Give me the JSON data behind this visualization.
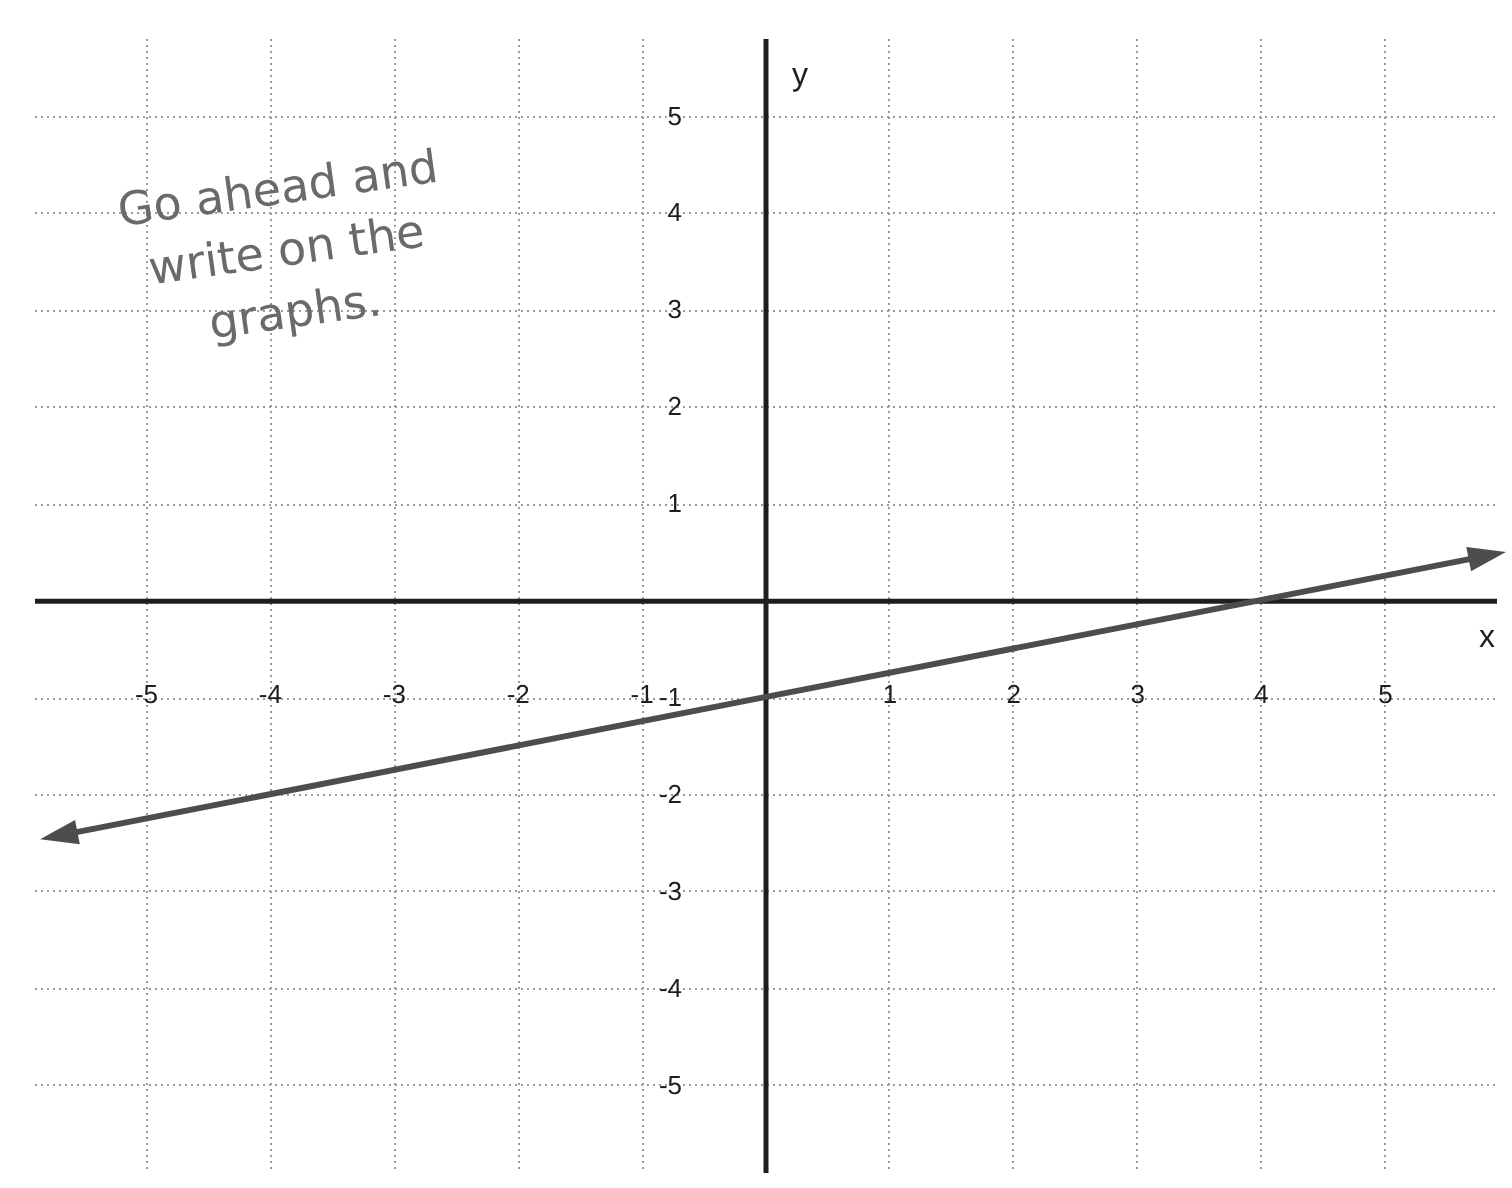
{
  "chart_data": {
    "type": "line",
    "xlabel": "x",
    "ylabel": "y",
    "annotations": [
      "Go ahead and\nwrite on the\ngraphs."
    ],
    "series": [
      {
        "color": "#4d4d4d",
        "x": [
          -5.7,
          0,
          4,
          5.83
        ],
        "values": [
          -2.43,
          -1,
          0,
          0.46
        ]
      }
    ],
    "xlim": [
      -5.9,
      5.9
    ],
    "ylim": [
      -5.9,
      5.8
    ],
    "xticks": [
      -5,
      -4,
      -3,
      -2,
      -1,
      1,
      2,
      3,
      4,
      5
    ],
    "yticks": [
      -5,
      -4,
      -3,
      -2,
      -1,
      1,
      2,
      3,
      4,
      5
    ],
    "grid": true,
    "line_style": "solid"
  }
}
